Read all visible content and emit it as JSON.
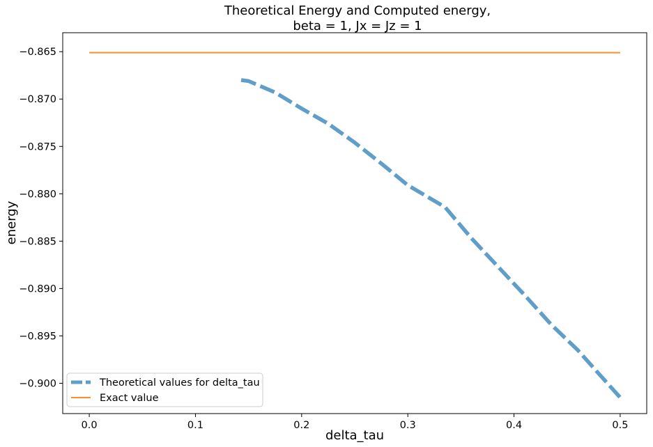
{
  "chart_data": {
    "type": "line",
    "title_line1": "Theoretical Energy and Computed energy,",
    "title_line2": "beta = 1, Jx = Jz = 1",
    "xlabel": "delta_tau",
    "ylabel": "energy",
    "xlim": [
      -0.025,
      0.525
    ],
    "ylim": [
      -0.9032,
      -0.863
    ],
    "xticks": [
      0.0,
      0.1,
      0.2,
      0.3,
      0.4,
      0.5
    ],
    "xtick_labels": [
      "0.0",
      "0.1",
      "0.2",
      "0.3",
      "0.4",
      "0.5"
    ],
    "yticks": [
      -0.865,
      -0.87,
      -0.875,
      -0.88,
      -0.885,
      -0.89,
      -0.895,
      -0.9
    ],
    "ytick_labels": [
      "−0.865",
      "−0.870",
      "−0.875",
      "−0.880",
      "−0.885",
      "−0.890",
      "−0.895",
      "−0.900"
    ],
    "grid": false,
    "legend_position": "lower-left",
    "series": [
      {
        "name": "Theoretical values for delta_tau",
        "color": "#5f9ec9",
        "style": "dashed",
        "x": [
          0.143,
          0.15,
          0.175,
          0.2,
          0.225,
          0.25,
          0.275,
          0.3,
          0.335,
          0.36,
          0.385,
          0.41,
          0.435,
          0.46,
          0.48,
          0.5
        ],
        "y": [
          -0.868,
          -0.8681,
          -0.8693,
          -0.871,
          -0.8726,
          -0.8746,
          -0.8768,
          -0.8791,
          -0.8814,
          -0.8847,
          -0.8877,
          -0.8907,
          -0.8938,
          -0.8965,
          -0.899,
          -0.9015
        ]
      },
      {
        "name": "Exact value",
        "color": "#ff8c2e",
        "style": "solid",
        "x": [
          0.0,
          0.5
        ],
        "y": [
          -0.8651,
          -0.8651
        ]
      }
    ]
  }
}
